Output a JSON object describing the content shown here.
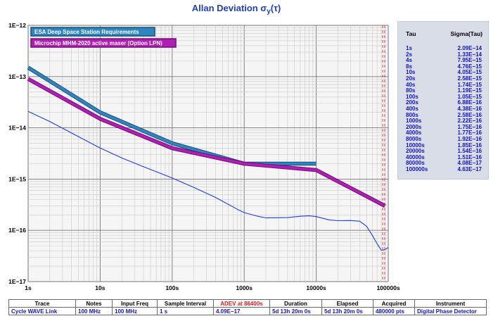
{
  "title_main": "Allan Deviation σ",
  "title_sub": "y",
  "title_tail": "(τ)",
  "colors": {
    "esa_series": "#2e86c1",
    "maser_series": "#b01eb4",
    "measured_series": "#1f3fd9",
    "deadline": "#e02020",
    "plot_bg": "#f5f5f5",
    "table_text": "#1414c8"
  },
  "chart_data": {
    "type": "line",
    "title": "Allan Deviation σy(τ)",
    "xlabel": "",
    "ylabel": "",
    "x_scale": "log",
    "y_scale": "log",
    "xlim": [
      1,
      100000
    ],
    "ylim": [
      1e-17,
      1e-12
    ],
    "grid": true,
    "legend": "top-left",
    "x_ticks": [
      "1s",
      "10s",
      "100s",
      "1000s",
      "10000s",
      "100000s"
    ],
    "y_ticks": [
      "1E−12",
      "1E−13",
      "1E−14",
      "1E−15",
      "1E−16",
      "1E−17"
    ],
    "vertical_marker_tau": 86400,
    "series": [
      {
        "name": "ESA Deep Space Station Requirements",
        "x": [
          1,
          10,
          100,
          1000,
          10000
        ],
        "y": [
          1.5e-13,
          2e-14,
          5e-15,
          2e-15,
          2e-15
        ]
      },
      {
        "name": "Microchip MHM-2020 active maser (Option LPN)",
        "x": [
          1,
          10,
          100,
          1000,
          10000,
          90000
        ],
        "y": [
          9e-14,
          1.5e-14,
          4e-15,
          2e-15,
          1.5e-15,
          3e-16
        ]
      },
      {
        "x": [
          1,
          2,
          4,
          8,
          10,
          20,
          40,
          80,
          100,
          200,
          400,
          800,
          1000,
          1500,
          2000,
          3000,
          4000,
          6000,
          8000,
          10000,
          15000,
          20000,
          30000,
          40000,
          50000,
          60000,
          70000,
          80000,
          90000,
          100000
        ],
        "y": [
          2.09e-14,
          1.33e-14,
          7.95e-15,
          4.76e-15,
          4.05e-15,
          2.58e-15,
          1.74e-15,
          1.19e-15,
          1.05e-15,
          6.88e-16,
          4.38e-16,
          2.58e-16,
          2.22e-16,
          1.9e-16,
          1.75e-16,
          1.76e-16,
          1.77e-16,
          1.88e-16,
          1.92e-16,
          1.85e-16,
          1.6e-16,
          1.54e-16,
          1.55e-16,
          1.51e-16,
          1.2e-16,
          8e-17,
          5.5e-17,
          4.08e-17,
          4.2e-17,
          4.63e-17
        ]
      }
    ]
  },
  "side_table": {
    "col_tau": "Tau",
    "col_sigma": "Sigma(Tau)",
    "rows": [
      {
        "tau": "1s",
        "sigma": "2.09E−14"
      },
      {
        "tau": "2s",
        "sigma": "1.33E−14"
      },
      {
        "tau": "4s",
        "sigma": "7.95E−15"
      },
      {
        "tau": "8s",
        "sigma": "4.76E−15"
      },
      {
        "tau": "10s",
        "sigma": "4.05E−15"
      },
      {
        "tau": "20s",
        "sigma": "2.58E−15"
      },
      {
        "tau": "40s",
        "sigma": "1.74E−15"
      },
      {
        "tau": "80s",
        "sigma": "1.19E−15"
      },
      {
        "tau": "100s",
        "sigma": "1.05E−15"
      },
      {
        "tau": "200s",
        "sigma": "6.88E−16"
      },
      {
        "tau": "400s",
        "sigma": "4.38E−16"
      },
      {
        "tau": "800s",
        "sigma": "2.58E−16"
      },
      {
        "tau": "1000s",
        "sigma": "2.22E−16"
      },
      {
        "tau": "2000s",
        "sigma": "1.75E−16"
      },
      {
        "tau": "4000s",
        "sigma": "1.77E−16"
      },
      {
        "tau": "8000s",
        "sigma": "1.92E−16"
      },
      {
        "tau": "10000s",
        "sigma": "1.85E−16"
      },
      {
        "tau": "20000s",
        "sigma": "1.54E−16"
      },
      {
        "tau": "40000s",
        "sigma": "1.51E−16"
      },
      {
        "tau": "80000s",
        "sigma": "4.08E−17"
      },
      {
        "tau": "100000s",
        "sigma": "4.63E−17"
      }
    ]
  },
  "bottom_table": {
    "headers": {
      "trace": "Trace",
      "notes": "Notes",
      "input_freq": "Input Freq",
      "sample_interval": "Sample Interval",
      "adev": "ADEV at 86400s",
      "duration": "Duration",
      "elapsed": "Elapsed",
      "acquired": "Acquired",
      "instrument": "Instrument"
    },
    "values": {
      "trace": "Cycle WAVE Link",
      "notes": "100 MHz",
      "input_freq": "100 MHz",
      "sample_interval": "1 s",
      "adev": "4.09E−17",
      "duration": "5d 13h 20m 0s",
      "elapsed": "5d 13h 20m 0s",
      "acquired": "480000 pts",
      "instrument": "Digital Phase Detector"
    }
  }
}
